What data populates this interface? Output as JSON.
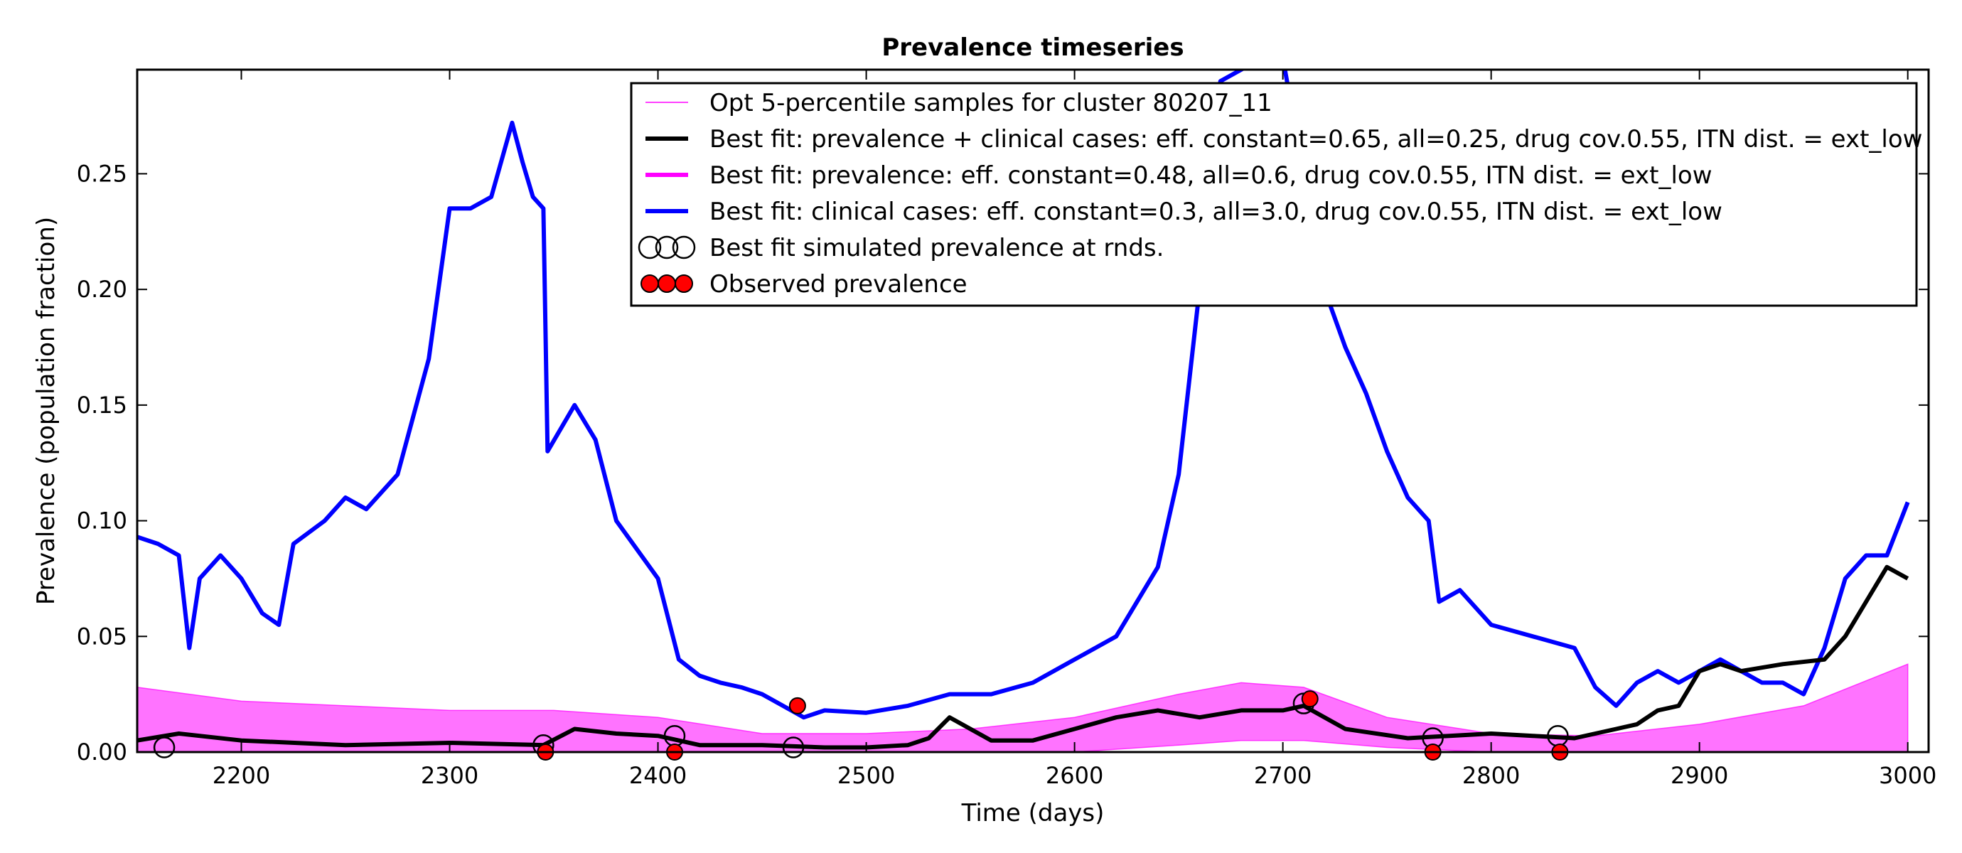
{
  "chart_data": {
    "type": "line",
    "title": "Prevalence timeseries",
    "xlabel": "Time (days)",
    "ylabel": "Prevalence (population fraction)",
    "xlim": [
      2150,
      3010
    ],
    "ylim": [
      0.0,
      0.295
    ],
    "xticks": [
      2200,
      2300,
      2400,
      2500,
      2600,
      2700,
      2800,
      2900,
      3000
    ],
    "yticks": [
      0.0,
      0.05,
      0.1,
      0.15,
      0.2,
      0.25
    ],
    "ytick_labels": [
      "0.00",
      "0.05",
      "0.10",
      "0.15",
      "0.20",
      "0.25"
    ],
    "grid": false,
    "legend_position": "top-right",
    "legend": [
      {
        "label": "Opt 5-percentile samples for cluster 80207_11",
        "color": "#ff00ff",
        "style": "thin-line"
      },
      {
        "label": "Best fit: prevalence + clinical cases: eff. constant=0.65, all=0.25, drug cov.0.55, ITN dist. = ext_low",
        "color": "#000000",
        "style": "thick-line"
      },
      {
        "label": "Best fit: prevalence: eff. constant=0.48, all=0.6, drug cov.0.55, ITN dist. = ext_low",
        "color": "#ff00ff",
        "style": "thick-line"
      },
      {
        "label": "Best fit: clinical cases: eff. constant=0.3, all=3.0, drug cov.0.55, ITN dist. = ext_low",
        "color": "#0000ff",
        "style": "thick-line"
      },
      {
        "label": "Best fit simulated prevalence at rnds.",
        "color": "#000000",
        "style": "open-circle"
      },
      {
        "label": "Observed prevalence",
        "color": "#ff0000",
        "style": "filled-circle"
      }
    ],
    "series": [
      {
        "color": "#0000ff",
        "x": [
          2150,
          2160,
          2170,
          2175,
          2180,
          2190,
          2200,
          2210,
          2218,
          2225,
          2240,
          2250,
          2260,
          2275,
          2290,
          2300,
          2310,
          2320,
          2330,
          2335,
          2340,
          2345,
          2347,
          2360,
          2370,
          2380,
          2400,
          2410,
          2420,
          2430,
          2440,
          2450,
          2460,
          2470,
          2480,
          2500,
          2520,
          2540,
          2560,
          2580,
          2600,
          2620,
          2640,
          2650,
          2660,
          2670,
          2690,
          2700,
          2720,
          2730,
          2740,
          2750,
          2760,
          2770,
          2775,
          2785,
          2800,
          2820,
          2840,
          2850,
          2860,
          2870,
          2880,
          2890,
          2900,
          2910,
          2920,
          2930,
          2940,
          2950,
          2960,
          2970,
          2980,
          2990,
          3000
        ],
        "y": [
          0.093,
          0.09,
          0.085,
          0.045,
          0.075,
          0.085,
          0.075,
          0.06,
          0.055,
          0.09,
          0.1,
          0.11,
          0.105,
          0.12,
          0.17,
          0.235,
          0.235,
          0.24,
          0.272,
          0.255,
          0.24,
          0.235,
          0.13,
          0.15,
          0.135,
          0.1,
          0.075,
          0.04,
          0.033,
          0.03,
          0.028,
          0.025,
          0.02,
          0.015,
          0.018,
          0.017,
          0.02,
          0.025,
          0.025,
          0.03,
          0.04,
          0.05,
          0.08,
          0.12,
          0.2,
          0.29,
          0.3,
          0.3,
          0.2,
          0.175,
          0.155,
          0.13,
          0.11,
          0.1,
          0.065,
          0.07,
          0.055,
          0.05,
          0.045,
          0.028,
          0.02,
          0.03,
          0.035,
          0.03,
          0.035,
          0.04,
          0.035,
          0.03,
          0.03,
          0.025,
          0.045,
          0.075,
          0.085,
          0.085,
          0.108
        ]
      },
      {
        "color": "#000000",
        "x": [
          2150,
          2170,
          2200,
          2250,
          2300,
          2345,
          2360,
          2380,
          2400,
          2420,
          2450,
          2480,
          2500,
          2520,
          2530,
          2540,
          2550,
          2560,
          2580,
          2600,
          2620,
          2640,
          2660,
          2680,
          2700,
          2710,
          2730,
          2760,
          2780,
          2800,
          2820,
          2840,
          2860,
          2870,
          2880,
          2890,
          2900,
          2910,
          2920,
          2940,
          2960,
          2970,
          2980,
          2990,
          3000
        ],
        "y": [
          0.005,
          0.008,
          0.005,
          0.003,
          0.004,
          0.003,
          0.01,
          0.008,
          0.007,
          0.003,
          0.003,
          0.002,
          0.002,
          0.003,
          0.006,
          0.015,
          0.01,
          0.005,
          0.005,
          0.01,
          0.015,
          0.018,
          0.015,
          0.018,
          0.018,
          0.02,
          0.01,
          0.006,
          0.007,
          0.008,
          0.007,
          0.006,
          0.01,
          0.012,
          0.018,
          0.02,
          0.035,
          0.038,
          0.035,
          0.038,
          0.04,
          0.05,
          0.065,
          0.08,
          0.075
        ]
      }
    ],
    "sample_band": {
      "color": "#ff00ff",
      "x": [
        2150,
        2200,
        2250,
        2300,
        2350,
        2400,
        2450,
        2500,
        2550,
        2600,
        2650,
        2680,
        2710,
        2750,
        2800,
        2850,
        2900,
        2950,
        3000
      ],
      "upper": [
        0.028,
        0.022,
        0.02,
        0.018,
        0.018,
        0.015,
        0.008,
        0.008,
        0.01,
        0.015,
        0.025,
        0.03,
        0.028,
        0.015,
        0.008,
        0.007,
        0.012,
        0.02,
        0.038
      ],
      "lower": [
        0.0,
        0.0,
        0.0,
        0.0,
        0.0,
        0.0,
        0.0,
        0.0,
        0.0,
        0.0,
        0.003,
        0.005,
        0.005,
        0.002,
        0.0,
        0.0,
        0.0,
        0.0,
        0.0
      ]
    },
    "simulated_points": {
      "x": [
        2163,
        2345,
        2408,
        2465,
        2710,
        2772,
        2832
      ],
      "y": [
        0.002,
        0.003,
        0.007,
        0.002,
        0.021,
        0.006,
        0.007
      ]
    },
    "observed_points": {
      "x": [
        2346,
        2408,
        2467,
        2713,
        2772,
        2833
      ],
      "y": [
        0.0,
        0.0,
        0.02,
        0.023,
        0.0,
        0.0
      ]
    }
  }
}
